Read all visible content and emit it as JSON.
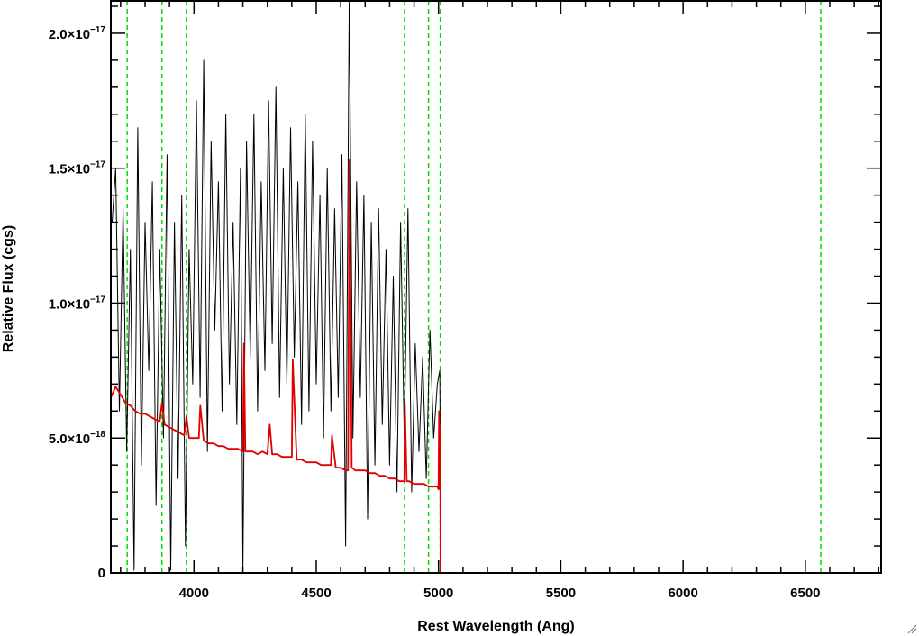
{
  "chart_data": {
    "type": "line",
    "title": "",
    "xlabel": "Rest Wavelength (Ang)",
    "ylabel": "Relative Flux (cgs)",
    "xlim": [
      3660,
      6810
    ],
    "ylim": [
      0,
      2.12e-17
    ],
    "x_ticks": [
      {
        "value": 4000,
        "label": "4000"
      },
      {
        "value": 4500,
        "label": "4500"
      },
      {
        "value": 5000,
        "label": "5000"
      },
      {
        "value": 5500,
        "label": "5500"
      },
      {
        "value": 6000,
        "label": "6000"
      },
      {
        "value": 6500,
        "label": "6500"
      }
    ],
    "y_ticks": [
      {
        "value": 0,
        "mantissa": "0",
        "exponent": ""
      },
      {
        "value": 5e-18,
        "mantissa": "5.0×10",
        "exponent": "−18"
      },
      {
        "value": 1e-17,
        "mantissa": "1.0×10",
        "exponent": "−17"
      },
      {
        "value": 1.5e-17,
        "mantissa": "1.5×10",
        "exponent": "−17"
      },
      {
        "value": 2e-17,
        "mantissa": "2.0×10",
        "exponent": "−17"
      }
    ],
    "x_minor_step": 100,
    "y_minor_step": 1e-18,
    "grid": false,
    "legend": "none",
    "colors": {
      "observed": "#000000",
      "model": "#e00000",
      "line_markers": "#00dd00",
      "axes": "#000000"
    },
    "vertical_lines": [
      3727,
      3869,
      3969,
      4861,
      4959,
      5007,
      6563
    ],
    "series": [
      {
        "color": "#000000",
        "x": [
          3665,
          3680,
          3695,
          3710,
          3725,
          3740,
          3755,
          3770,
          3785,
          3800,
          3815,
          3830,
          3845,
          3860,
          3875,
          3890,
          3905,
          3920,
          3935,
          3950,
          3965,
          3980,
          3995,
          4010,
          4025,
          4040,
          4055,
          4070,
          4085,
          4100,
          4115,
          4130,
          4145,
          4160,
          4175,
          4190,
          4200,
          4215,
          4230,
          4245,
          4260,
          4275,
          4290,
          4305,
          4320,
          4335,
          4350,
          4365,
          4380,
          4395,
          4410,
          4425,
          4440,
          4455,
          4470,
          4485,
          4500,
          4515,
          4530,
          4545,
          4560,
          4575,
          4590,
          4605,
          4620,
          4635,
          4650,
          4665,
          4680,
          4695,
          4710,
          4725,
          4740,
          4755,
          4770,
          4785,
          4800,
          4815,
          4830,
          4845,
          4860,
          4875,
          4890,
          4905,
          4920,
          4935,
          4950,
          4965,
          4980,
          4995,
          5005,
          5010,
          5020,
          5200,
          5600,
          6000,
          6400,
          6810
        ],
        "y": [
          1.3e-17,
          1.5e-17,
          6e-18,
          1.35e-17,
          4.5e-18,
          1.2e-17,
          1e-19,
          1.65e-17,
          4e-18,
          1.3e-17,
          7.5e-18,
          1.45e-17,
          2.5e-18,
          1.2e-17,
          5e-18,
          1.55e-17,
          1e-19,
          1.3e-17,
          3.5e-18,
          1.4e-17,
          1e-18,
          1.2e-17,
          7e-18,
          1.75e-17,
          6.5e-18,
          1.9e-17,
          4.5e-18,
          1.6e-17,
          9e-18,
          1.45e-17,
          6e-18,
          1.7e-17,
          7e-18,
          1.3e-17,
          5.5e-18,
          1.5e-17,
          1e-19,
          1.6e-17,
          8e-18,
          1.7e-17,
          6e-18,
          1.45e-17,
          7.5e-18,
          1.75e-17,
          8.5e-18,
          1.8e-17,
          6.5e-18,
          1.5e-17,
          7e-18,
          1.65e-17,
          8e-18,
          1.45e-17,
          5.5e-18,
          1.7e-17,
          6e-18,
          1.6e-17,
          7e-18,
          1.4e-17,
          5e-18,
          1.5e-17,
          6e-18,
          1.35e-17,
          6.5e-18,
          1.55e-17,
          1e-18,
          2.13e-17,
          5e-18,
          1.45e-17,
          6.5e-18,
          1.4e-17,
          2e-18,
          1.3e-17,
          4e-18,
          1.35e-17,
          5.5e-18,
          1.2e-17,
          4e-18,
          1.1e-17,
          3e-18,
          1.3e-17,
          5e-18,
          1.35e-17,
          3e-18,
          8.5e-18,
          4.5e-18,
          8e-18,
          3.5e-18,
          9e-18,
          5e-18,
          7e-18,
          7.5e-18,
          0,
          0,
          0,
          0,
          0,
          0,
          0
        ]
      },
      {
        "color": "#e00000",
        "x": [
          3660,
          3680,
          3700,
          3720,
          3740,
          3760,
          3780,
          3800,
          3820,
          3840,
          3860,
          3869,
          3880,
          3900,
          3920,
          3940,
          3960,
          3969,
          3980,
          4000,
          4020,
          4026,
          4040,
          4060,
          4080,
          4100,
          4120,
          4140,
          4160,
          4180,
          4200,
          4204,
          4210,
          4240,
          4260,
          4280,
          4300,
          4310,
          4320,
          4340,
          4360,
          4380,
          4400,
          4404,
          4420,
          4440,
          4460,
          4480,
          4500,
          4520,
          4540,
          4560,
          4564,
          4580,
          4600,
          4620,
          4630,
          4636,
          4645,
          4660,
          4680,
          4700,
          4720,
          4740,
          4760,
          4780,
          4800,
          4820,
          4840,
          4860,
          4862,
          4870,
          4880,
          4900,
          4920,
          4940,
          4960,
          4980,
          4995,
          5000,
          5002,
          5005,
          5007,
          5008,
          5010,
          5200,
          5600,
          6000,
          6400,
          6810
        ],
        "y": [
          6.5e-18,
          6.9e-18,
          6.6e-18,
          6.3e-18,
          6.2e-18,
          6e-18,
          5.9e-18,
          5.9e-18,
          5.8e-18,
          5.7e-18,
          5.6e-18,
          6.3e-18,
          5.5e-18,
          5.4e-18,
          5.3e-18,
          5.2e-18,
          5.1e-18,
          5.8e-18,
          5e-18,
          5e-18,
          5e-18,
          6.2e-18,
          4.9e-18,
          4.8e-18,
          4.8e-18,
          4.7e-18,
          4.7e-18,
          4.6e-18,
          4.6e-18,
          4.6e-18,
          4.5e-18,
          8.5e-18,
          4.5e-18,
          4.5e-18,
          4.4e-18,
          4.5e-18,
          4.4e-18,
          5.5e-18,
          4.4e-18,
          4.4e-18,
          4.3e-18,
          4.3e-18,
          4.3e-18,
          7.9e-18,
          4.2e-18,
          4.2e-18,
          4.1e-18,
          4.1e-18,
          4.1e-18,
          4e-18,
          4e-18,
          4e-18,
          5.1e-18,
          3.9e-18,
          3.9e-18,
          3.8e-18,
          3.8e-18,
          1.53e-17,
          3.9e-18,
          3.8e-18,
          3.8e-18,
          3.8e-18,
          3.7e-18,
          3.7e-18,
          3.6e-18,
          3.6e-18,
          3.5e-18,
          3.5e-18,
          3.4e-18,
          3.4e-18,
          6.3e-18,
          3.4e-18,
          3.4e-18,
          3.3e-18,
          3.3e-18,
          3.3e-18,
          3.2e-18,
          3.2e-18,
          3.2e-18,
          3.1e-18,
          6e-18,
          3.1e-18,
          5.5e-18,
          0,
          0,
          0,
          0,
          0,
          0,
          0
        ]
      }
    ]
  }
}
